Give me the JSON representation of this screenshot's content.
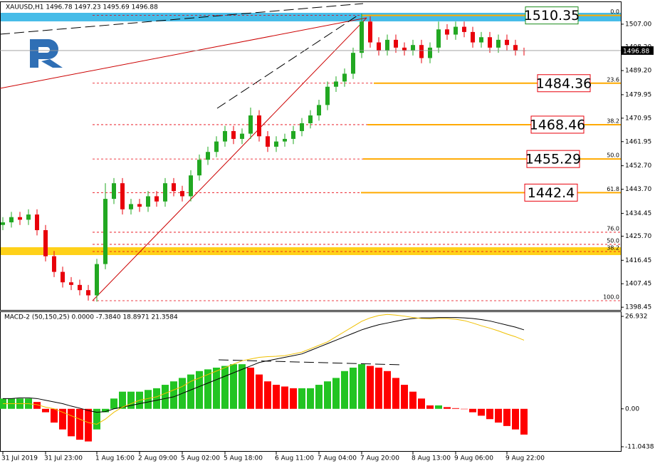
{
  "chart_data": [
    {
      "type": "candlestick",
      "title": "XAUUSD,H1  1496.78 1497.23 1495.69 1496.88",
      "categories": [
        "31 Jul 2019",
        null,
        null,
        null,
        null,
        "31 Jul 23:00",
        null,
        null,
        null,
        null,
        null,
        "1 Aug 16:00",
        null,
        null,
        null,
        null,
        "2 Aug 09:00",
        null,
        null,
        null,
        null,
        "5 Aug 02:00",
        null,
        null,
        null,
        null,
        "5 Aug 18:00",
        null,
        null,
        null,
        null,
        null,
        "6 Aug 11:00",
        null,
        null,
        null,
        null,
        "7 Aug 04:00",
        null,
        null,
        null,
        null,
        "7 Aug 20:00",
        null,
        null,
        null,
        null,
        null,
        "8 Aug 13:00",
        null,
        null,
        null,
        null,
        "9 Aug 06:00",
        null,
        null,
        null,
        null,
        null,
        "9 Aug 22:00",
        null,
        null
      ],
      "open": [
        1430,
        1431,
        1433,
        1432,
        1434,
        1428,
        1418,
        1412,
        1408,
        1407,
        1405,
        1403,
        1415,
        1440,
        1446,
        1436,
        1438,
        1437,
        1441,
        1439,
        1446,
        1443,
        1441,
        1449,
        1455,
        1458,
        1462,
        1466,
        1463,
        1465,
        1472,
        1464,
        1460,
        1462,
        1463,
        1466,
        1469,
        1472,
        1476,
        1483,
        1485,
        1488,
        1496,
        1508,
        1500,
        1497,
        1501,
        1498,
        1497,
        1499,
        1494,
        1498,
        1505,
        1503,
        1506,
        1504,
        1500,
        1502,
        1498,
        1501,
        1499,
        1497
      ],
      "high": [
        1433,
        1435,
        1435,
        1436,
        1436,
        1430,
        1420,
        1414,
        1410,
        1409,
        1407,
        1417,
        1446,
        1448,
        1448,
        1440,
        1440,
        1443,
        1443,
        1448,
        1448,
        1445,
        1451,
        1457,
        1460,
        1464,
        1468,
        1468,
        1467,
        1475,
        1474,
        1466,
        1464,
        1465,
        1468,
        1471,
        1474,
        1478,
        1485,
        1487,
        1490,
        1498,
        1511,
        1510,
        1502,
        1503,
        1503,
        1500,
        1501,
        1501,
        1500,
        1508,
        1507,
        1508,
        1508,
        1506,
        1504,
        1504,
        1503,
        1503,
        1501,
        1498
      ],
      "low": [
        1428,
        1429,
        1430,
        1430,
        1426,
        1416,
        1410,
        1406,
        1405,
        1403,
        1401,
        1400.6,
        1413,
        1438,
        1434,
        1434,
        1435,
        1435,
        1437,
        1437,
        1441,
        1439,
        1439,
        1447,
        1453,
        1456,
        1460,
        1461,
        1461,
        1463,
        1462,
        1458,
        1458,
        1460,
        1461,
        1464,
        1467,
        1470,
        1474,
        1481,
        1483,
        1486,
        1494,
        1498,
        1495,
        1495,
        1496,
        1495,
        1495,
        1492,
        1492,
        1496,
        1501,
        1501,
        1502,
        1498,
        1498,
        1496,
        1496,
        1497,
        1495,
        1495
      ],
      "close": [
        1431,
        1433,
        1432,
        1434,
        1428,
        1418,
        1412,
        1408,
        1407,
        1405,
        1403,
        1415,
        1440,
        1446,
        1436,
        1438,
        1437,
        1441,
        1439,
        1446,
        1443,
        1441,
        1449,
        1455,
        1458,
        1462,
        1466,
        1463,
        1465,
        1472,
        1464,
        1460,
        1462,
        1463,
        1466,
        1469,
        1472,
        1476,
        1483,
        1485,
        1488,
        1496,
        1508,
        1500,
        1497,
        1501,
        1498,
        1497,
        1499,
        1494,
        1498,
        1505,
        1503,
        1506,
        1504,
        1500,
        1502,
        1498,
        1501,
        1499,
        1497,
        1496.88
      ],
      "up_color": "#22a822",
      "down_color": "#e8000b",
      "ylim": [
        1397.4,
        1514.9
      ],
      "yticks": [
        {
          "value": 1507,
          "label": "1507.00"
        },
        {
          "value": 1498.2,
          "label": "1498.20"
        },
        {
          "value": 1489.2,
          "label": "1489.20"
        },
        {
          "value": 1479.95,
          "label": "1479.95"
        },
        {
          "value": 1470.95,
          "label": "1470.95"
        },
        {
          "value": 1461.95,
          "label": "1461.95"
        },
        {
          "value": 1452.7,
          "label": "1452.70"
        },
        {
          "value": 1443.7,
          "label": "1443.70"
        },
        {
          "value": 1434.45,
          "label": "1434.45"
        },
        {
          "value": 1425.7,
          "label": "1425.70"
        },
        {
          "value": 1416.45,
          "label": "1416.45"
        },
        {
          "value": 1407.45,
          "label": "1407.45"
        },
        {
          "value": 1398.45,
          "label": "1398.45"
        }
      ],
      "current_price": 1496.88,
      "fib_levels": [
        {
          "ratio": "0.0",
          "price": 1510.35,
          "boxed": true,
          "color": "#1a8a1a"
        },
        {
          "ratio": "23.6",
          "price": 1484.36,
          "boxed": true,
          "color": "#e8000b"
        },
        {
          "ratio": "38.2",
          "price": 1468.46,
          "boxed": true,
          "color": "#e8000b"
        },
        {
          "ratio": "50.0",
          "price": 1455.29,
          "boxed": true,
          "color": "#e8000b"
        },
        {
          "ratio": "61.8",
          "price": 1442.4,
          "boxed": true,
          "color": "#e8000b"
        },
        {
          "ratio": "76.0",
          "price": 1427.2,
          "boxed": false,
          "color": "#e8000b"
        },
        {
          "ratio": "100.0",
          "price": 1400.96,
          "boxed": false,
          "color": "#e8000b"
        },
        {
          "ratio": "50.0",
          "price": 1422.55,
          "boxed": false,
          "color": "#1a8a1a"
        },
        {
          "ratio": "38.2",
          "price": 1419.8,
          "boxed": false,
          "color": "#e8000b"
        }
      ],
      "zones": [
        {
          "range": [
            1508.07,
            1511.35
          ],
          "color": "#33b5e5"
        },
        {
          "range": [
            1418.45,
            1421.46
          ],
          "color": "#ffcc00"
        }
      ]
    },
    {
      "type": "macd",
      "title": "MACD-2 (50,150,25) 0.0000 -7.3840 18.8971 21.3584",
      "values": [
        3,
        3,
        3,
        3,
        2,
        -1,
        -4,
        -6,
        -8,
        -9,
        -9.5,
        -6,
        -1,
        3,
        5,
        5,
        5,
        5.5,
        6,
        7,
        8,
        9,
        10,
        11,
        11.5,
        12,
        12.5,
        13,
        13,
        12,
        10,
        8,
        7,
        6.5,
        6,
        6,
        6,
        7,
        8,
        9,
        11,
        12,
        13,
        12.5,
        12,
        11,
        9,
        7,
        5,
        3,
        1,
        1,
        0.5,
        0.2,
        0,
        -1,
        -2,
        -3,
        -4,
        -5,
        -6,
        -7.5
      ],
      "up_color": "#22c422",
      "down_color": "#ff0000",
      "series": [
        {
          "color": "#000000",
          "values": [
            3,
            3,
            3.2,
            3.2,
            3,
            2.5,
            2,
            1.5,
            0.8,
            0.2,
            -0.5,
            -1,
            -0.8,
            0,
            0.5,
            1,
            1.5,
            2,
            2.5,
            3,
            3.5,
            4.5,
            5.5,
            6.5,
            7.5,
            8.5,
            9.5,
            10.5,
            11.5,
            12.5,
            13.5,
            14,
            14.5,
            15,
            15.5,
            16,
            17,
            18,
            19,
            20,
            21,
            22,
            23,
            23.8,
            24.5,
            25,
            25.5,
            26,
            26.3,
            26.5,
            26.5,
            26.6,
            26.6,
            26.6,
            26.5,
            26.3,
            26,
            25.6,
            25,
            24.4,
            23.8,
            23
          ]
        },
        {
          "color": "#f0c000",
          "values": [
            1.5,
            1.5,
            1.5,
            1.5,
            1.2,
            0.5,
            0,
            -1,
            -2,
            -3,
            -4,
            -4.5,
            -3,
            -1,
            0.5,
            1.5,
            2.5,
            3,
            3.5,
            4.5,
            5.5,
            6.5,
            8,
            9,
            10,
            11,
            12,
            13,
            14,
            14.5,
            15,
            15.2,
            15.3,
            15.5,
            16,
            16.5,
            17.5,
            18.5,
            19.5,
            21,
            22.5,
            24,
            25.5,
            26.5,
            27.2,
            27.5,
            27.3,
            27,
            26.6,
            26.3,
            26.2,
            26.3,
            26.3,
            26.1,
            25.7,
            25,
            24.2,
            23.5,
            22.7,
            21.8,
            21,
            20
          ]
        }
      ],
      "ylim": [
        -12.5,
        28.18
      ],
      "yticks": [
        26.932,
        {
          "value": 0,
          "label": "0.00"
        },
        -11.0438
      ]
    }
  ]
}
